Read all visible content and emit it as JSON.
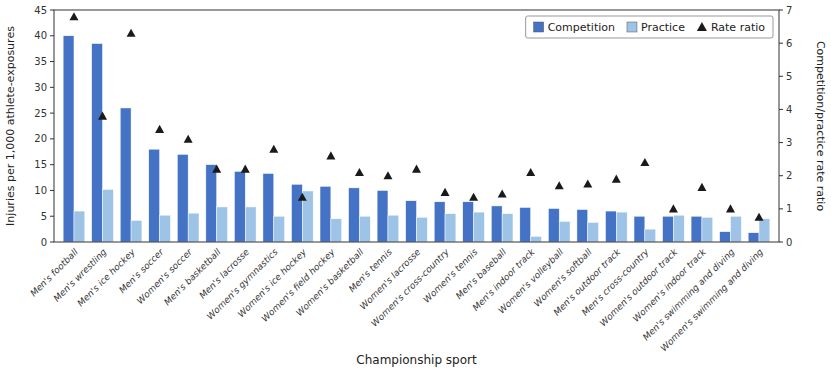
{
  "chart_data": {
    "type": "bar",
    "xlabel": "Championship sport",
    "ylabel": "Injuries per 1,000 athlete-exposures",
    "y2label": "Competition/practice rate ratio",
    "categories": [
      "Men's football",
      "Men's wrestling",
      "Men's ice hockey",
      "Men's soccer",
      "Women's soccer",
      "Men's basketball",
      "Men's lacrosse",
      "Women's gymnastics",
      "Women's ice hockey",
      "Women's field hockey",
      "Women's basketball",
      "Men's tennis",
      "Women's lacrosse",
      "Women's cross-country",
      "Women's tennis",
      "Men's baseball",
      "Men's indoor track",
      "Women's volleyball",
      "Women's softball",
      "Men's outdoor track",
      "Men's cross-country",
      "Women's outdoor track",
      "Women's indoor track",
      "Men's swimming and diving",
      "Women's swimming and diving"
    ],
    "series": [
      {
        "name": "Competition",
        "color": "#4472C4",
        "values": [
          40.0,
          38.5,
          26.0,
          18.0,
          17.0,
          15.0,
          13.7,
          13.3,
          11.2,
          10.8,
          10.5,
          10.0,
          8.0,
          7.8,
          7.8,
          7.0,
          6.7,
          6.5,
          6.3,
          6.0,
          5.0,
          5.0,
          5.0,
          2.0,
          1.8
        ]
      },
      {
        "name": "Practice",
        "color": "#9DC3E6",
        "values": [
          6.0,
          10.2,
          4.2,
          5.2,
          5.6,
          6.8,
          6.8,
          5.0,
          9.9,
          4.5,
          5.0,
          5.2,
          4.8,
          5.5,
          5.8,
          5.5,
          1.1,
          4.0,
          3.8,
          5.8,
          2.5,
          5.2,
          4.8,
          5.0,
          4.5
        ]
      },
      {
        "name": "Rate ratio",
        "type": "scatter",
        "marker": "triangle",
        "axis": "y2",
        "color": "#1a1a1a",
        "values": [
          6.8,
          3.8,
          6.3,
          3.4,
          3.1,
          2.2,
          2.2,
          2.8,
          1.35,
          2.6,
          2.1,
          2.0,
          2.2,
          1.5,
          1.35,
          1.45,
          2.1,
          1.7,
          1.75,
          1.9,
          2.4,
          1.0,
          1.65,
          1.0,
          0.75
        ]
      }
    ],
    "ylim": [
      0,
      45
    ],
    "yticks": [
      0,
      5,
      10,
      15,
      20,
      25,
      30,
      35,
      40,
      45
    ],
    "y2lim": [
      0,
      7
    ],
    "y2ticks": [
      0,
      1,
      2,
      3,
      4,
      5,
      6,
      7
    ],
    "grid": false,
    "legend": "upper right"
  }
}
